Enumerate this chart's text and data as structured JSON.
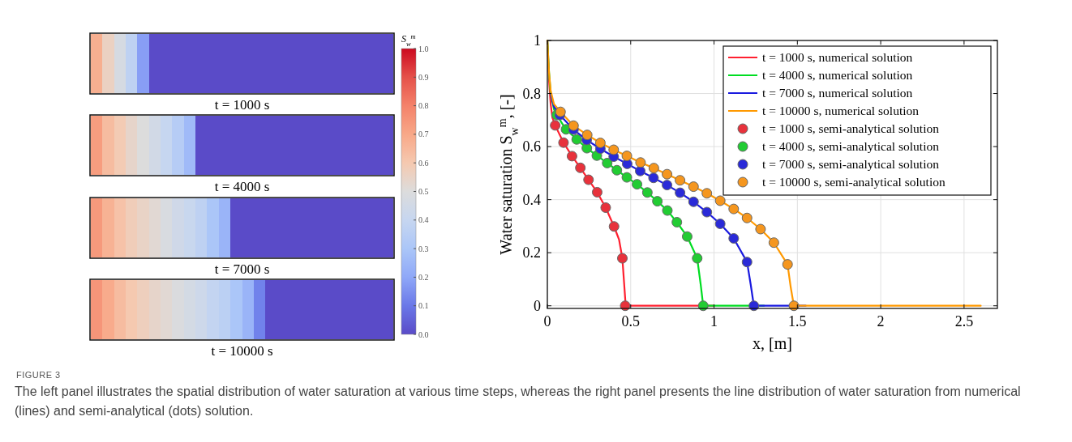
{
  "chart_data": [
    {
      "type": "heatmap",
      "categories": [
        null,
        null,
        null,
        null,
        null,
        null,
        null,
        null,
        null,
        null,
        null,
        null,
        null,
        null,
        null,
        null,
        null,
        null,
        null,
        null,
        null,
        null,
        null,
        null,
        null,
        null
      ],
      "y_categories": [
        null,
        null,
        null,
        null
      ],
      "annotations": [
        "t = 1000 s",
        "t = 4000 s",
        "t = 7000 s",
        "t = 10000 s"
      ],
      "cells": [
        [
          0.68,
          0.56,
          0.47,
          0.37,
          0.18,
          0,
          0,
          0,
          0,
          0,
          0,
          0,
          0,
          0,
          0,
          0,
          0,
          0,
          0,
          0,
          0,
          0,
          0,
          0,
          0,
          0
        ],
        [
          0.73,
          0.64,
          0.59,
          0.54,
          0.5,
          0.45,
          0.4,
          0.34,
          0.26,
          0,
          0,
          0,
          0,
          0,
          0,
          0,
          0,
          0,
          0,
          0,
          0,
          0,
          0,
          0,
          0,
          0
        ],
        [
          0.74,
          0.67,
          0.62,
          0.58,
          0.55,
          0.52,
          0.48,
          0.44,
          0.41,
          0.37,
          0.3,
          0.24,
          0,
          0,
          0,
          0,
          0,
          0,
          0,
          0,
          0,
          0,
          0,
          0,
          0,
          0
        ],
        [
          0.75,
          0.69,
          0.64,
          0.6,
          0.57,
          0.54,
          0.52,
          0.49,
          0.46,
          0.43,
          0.39,
          0.36,
          0.3,
          0.24,
          0.12,
          0,
          0,
          0,
          0,
          0,
          0,
          0,
          0,
          0,
          0,
          0
        ]
      ],
      "clim": [
        0,
        1
      ],
      "cticks": [
        {
          "value": 0,
          "label": "0.0"
        },
        {
          "value": 0.1,
          "label": "0.1"
        },
        {
          "value": 0.2,
          "label": "0.2"
        },
        {
          "value": 0.3,
          "label": "0.3"
        },
        {
          "value": 0.4,
          "label": "0.4"
        },
        {
          "value": 0.5,
          "label": "0.5"
        },
        {
          "value": 0.6,
          "label": "0.6"
        },
        {
          "value": 0.7,
          "label": "0.7"
        },
        {
          "value": 0.8,
          "label": "0.8"
        },
        {
          "value": 0.9,
          "label": "0.9"
        },
        {
          "value": 1,
          "label": "1.0"
        }
      ],
      "clabel": "S$_{w}$$^{m}$"
    },
    {
      "type": "line",
      "xlabel": "x, [m]",
      "ylabel": "Water saturation S$_{w}$$^{m}$, [-]",
      "xlim": [
        0,
        2.7
      ],
      "ylim": [
        -0.01,
        1
      ],
      "xticks": [
        0,
        0.5,
        1,
        1.5,
        2,
        2.5
      ],
      "yticks": [
        0,
        0.2,
        0.4,
        0.6,
        0.8,
        1
      ],
      "grid": true,
      "legend": "top right",
      "series": [
        {
          "name": "t = 1000 s, numerical solution",
          "color": "#ff2030",
          "x": [
            0,
            0.01,
            0.02,
            0.03,
            0.047,
            0.097,
            0.148,
            0.198,
            0.247,
            0.299,
            0.35,
            0.4,
            0.43,
            0.45,
            0.46,
            0.47,
            0.5,
            1.0
          ],
          "values": [
            1,
            0.85,
            0.76,
            0.71,
            0.68,
            0.615,
            0.564,
            0.52,
            0.475,
            0.428,
            0.37,
            0.299,
            0.25,
            0.179,
            0.09,
            0,
            0,
            0
          ]
        },
        {
          "name": "t = 4000 s, numerical solution",
          "color": "#00dd22",
          "x": [
            0,
            0.01,
            0.02,
            0.04,
            0.056,
            0.112,
            0.176,
            0.237,
            0.297,
            0.359,
            0.417,
            0.477,
            0.538,
            0.6,
            0.66,
            0.72,
            0.777,
            0.839,
            0.899,
            0.92,
            0.935,
            1.0,
            1.3
          ],
          "values": [
            1,
            0.88,
            0.8,
            0.74,
            0.719,
            0.665,
            0.627,
            0.594,
            0.566,
            0.538,
            0.511,
            0.484,
            0.458,
            0.427,
            0.394,
            0.359,
            0.315,
            0.261,
            0.179,
            0.08,
            0,
            0,
            0
          ]
        },
        {
          "name": "t = 7000 s, numerical solution",
          "color": "#1a1adf",
          "x": [
            0.02,
            0.04,
            0.075,
            0.157,
            0.236,
            0.318,
            0.398,
            0.479,
            0.557,
            0.637,
            0.718,
            0.796,
            0.877,
            0.957,
            1.037,
            1.118,
            1.198,
            1.22,
            1.239,
            1.3,
            1.55
          ],
          "values": [
            0.8,
            0.75,
            0.719,
            0.664,
            0.625,
            0.592,
            0.562,
            0.535,
            0.508,
            0.482,
            0.455,
            0.426,
            0.392,
            0.353,
            0.309,
            0.254,
            0.165,
            0.08,
            0,
            0,
            0
          ]
        },
        {
          "name": "t = 10000 s, numerical solution",
          "color": "#ff9900",
          "x": [
            0,
            0.01,
            0.02,
            0.04,
            0.079,
            0.157,
            0.239,
            0.318,
            0.398,
            0.477,
            0.559,
            0.639,
            0.718,
            0.796,
            0.877,
            0.957,
            1.037,
            1.118,
            1.198,
            1.279,
            1.359,
            1.441,
            1.46,
            1.479,
            1.55,
            2.6
          ],
          "values": [
            1,
            0.88,
            0.81,
            0.76,
            0.731,
            0.679,
            0.644,
            0.614,
            0.588,
            0.565,
            0.54,
            0.519,
            0.496,
            0.473,
            0.449,
            0.424,
            0.396,
            0.365,
            0.331,
            0.289,
            0.238,
            0.156,
            0.07,
            0,
            0,
            0
          ]
        },
        {
          "type": "scatter",
          "name": "t = 1000 s, semi-analytical solution",
          "color": "#e8323c",
          "marker": "circle",
          "x": [
            0.047,
            0.097,
            0.148,
            0.198,
            0.247,
            0.299,
            0.35,
            0.4,
            0.45,
            0.467
          ],
          "values": [
            0.68,
            0.615,
            0.564,
            0.52,
            0.475,
            0.428,
            0.37,
            0.299,
            0.179,
            0
          ]
        },
        {
          "type": "scatter",
          "name": "t = 4000 s, semi-analytical solution",
          "color": "#22cc33",
          "marker": "circle",
          "x": [
            0.056,
            0.112,
            0.176,
            0.237,
            0.297,
            0.359,
            0.417,
            0.477,
            0.538,
            0.6,
            0.66,
            0.72,
            0.777,
            0.839,
            0.899,
            0.935
          ],
          "values": [
            0.719,
            0.665,
            0.627,
            0.594,
            0.566,
            0.538,
            0.511,
            0.484,
            0.458,
            0.427,
            0.394,
            0.359,
            0.315,
            0.261,
            0.179,
            0
          ]
        },
        {
          "type": "scatter",
          "name": "t = 7000 s, semi-analytical solution",
          "color": "#2a2ad8",
          "marker": "circle",
          "x": [
            0.075,
            0.157,
            0.236,
            0.318,
            0.398,
            0.479,
            0.557,
            0.637,
            0.718,
            0.796,
            0.877,
            0.957,
            1.037,
            1.118,
            1.198,
            1.239
          ],
          "values": [
            0.719,
            0.664,
            0.625,
            0.592,
            0.562,
            0.535,
            0.508,
            0.482,
            0.455,
            0.426,
            0.392,
            0.353,
            0.309,
            0.254,
            0.165,
            0
          ]
        },
        {
          "type": "scatter",
          "name": "t = 10000 s, semi-analytical solution",
          "color": "#f5961e",
          "marker": "circle",
          "x": [
            0.079,
            0.157,
            0.239,
            0.318,
            0.398,
            0.477,
            0.559,
            0.639,
            0.718,
            0.796,
            0.877,
            0.957,
            1.037,
            1.118,
            1.198,
            1.279,
            1.359,
            1.441,
            1.479
          ],
          "values": [
            0.731,
            0.679,
            0.644,
            0.614,
            0.588,
            0.565,
            0.54,
            0.519,
            0.496,
            0.473,
            0.449,
            0.424,
            0.396,
            0.365,
            0.331,
            0.289,
            0.238,
            0.156,
            0
          ]
        }
      ],
      "annotations": [
        "FIGURE 3",
        "The left panel illustrates the spatial distribution of water saturation at various time steps, whereas the right panel presents the line distribution of water saturation from numerical (lines) and semi-analytical (dots) solution."
      ]
    }
  ]
}
